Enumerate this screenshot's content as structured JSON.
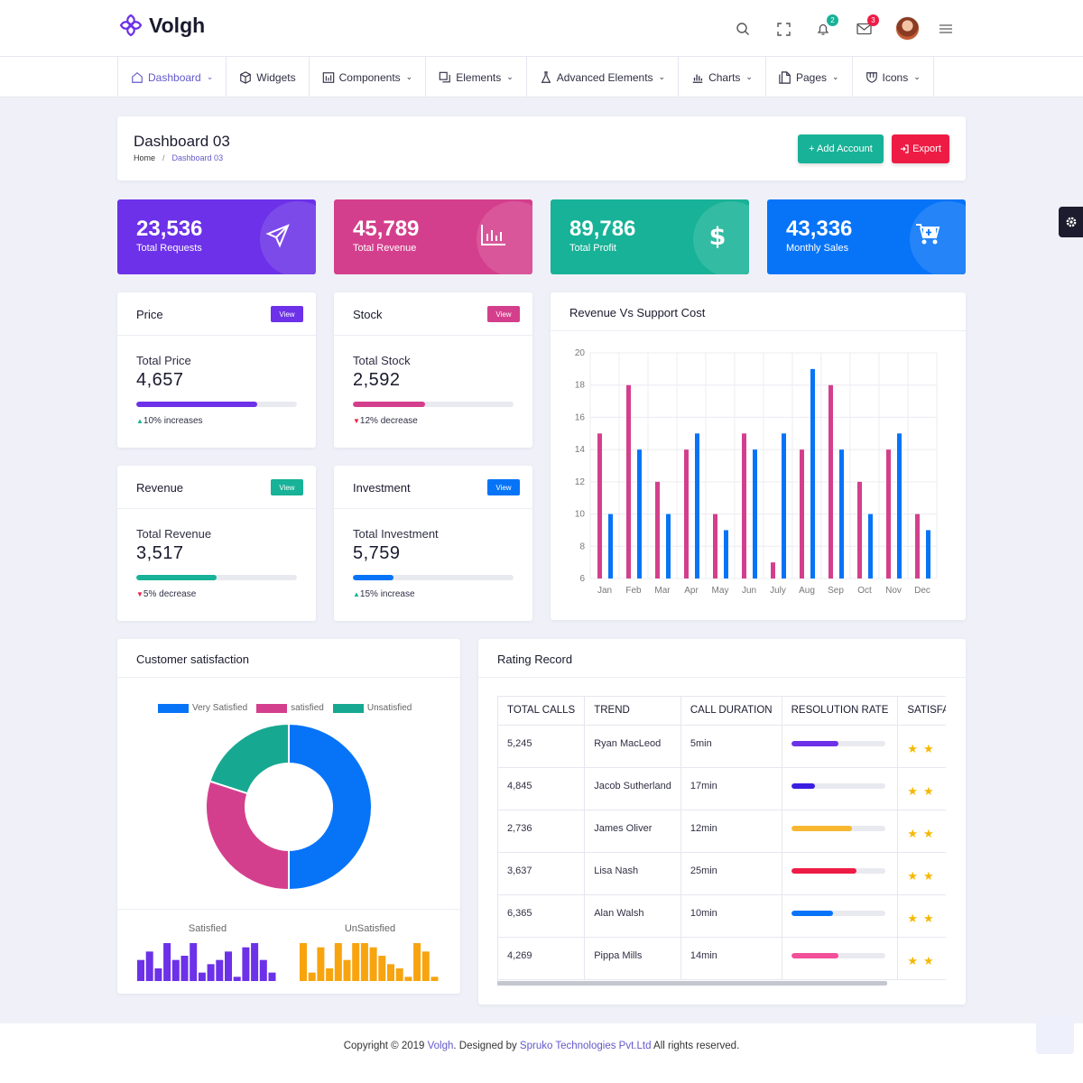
{
  "brand": {
    "name": "Volgh"
  },
  "header": {
    "notifications_count": "2",
    "messages_count": "3"
  },
  "nav": [
    {
      "label": "Dashboard",
      "icon": "home-icon",
      "active": true,
      "chevron": true
    },
    {
      "label": "Widgets",
      "icon": "box-icon",
      "chevron": false
    },
    {
      "label": "Components",
      "icon": "calendar-icon",
      "chevron": true
    },
    {
      "label": "Elements",
      "icon": "copy-icon",
      "chevron": true
    },
    {
      "label": "Advanced Elements",
      "icon": "flask-icon",
      "chevron": true
    },
    {
      "label": "Charts",
      "icon": "bar-chart-icon",
      "chevron": true
    },
    {
      "label": "Pages",
      "icon": "pages-icon",
      "chevron": true
    },
    {
      "label": "Icons",
      "icon": "shield-icon",
      "chevron": true
    }
  ],
  "page": {
    "title": "Dashboard 03",
    "breadcrumb": [
      "Home",
      "Dashboard 03"
    ],
    "add_button": "+ Add Account",
    "export_button": "Export"
  },
  "stats": [
    {
      "value": "23,536",
      "label": "Total Requests",
      "color": "#6c31e8",
      "icon": "paper-plane-icon"
    },
    {
      "value": "45,789",
      "label": "Total Revenue",
      "color": "#d43f8d",
      "icon": "bar-chart-icon"
    },
    {
      "value": "89,786",
      "label": "Total Profit",
      "color": "#17b297",
      "icon": "dollar-icon"
    },
    {
      "value": "43,336",
      "label": "Monthly Sales",
      "color": "#0774f8",
      "icon": "cart-icon"
    }
  ],
  "mini_cards": [
    {
      "title": "Price",
      "button": "View",
      "label": "Total Price",
      "value": "4,657",
      "progress": 0.75,
      "note": "10% increases",
      "trend": "up",
      "color": "#6c31e8"
    },
    {
      "title": "Stock",
      "button": "View",
      "label": "Total Stock",
      "value": "2,592",
      "progress": 0.45,
      "note": "12% decrease",
      "trend": "down",
      "color": "#d43f8d"
    },
    {
      "title": "Revenue",
      "button": "View",
      "label": "Total Revenue",
      "value": "3,517",
      "progress": 0.5,
      "note": "5% decrease",
      "trend": "down",
      "color": "#17b297"
    },
    {
      "title": "Investment",
      "button": "View",
      "label": "Total Investment",
      "value": "5,759",
      "progress": 0.25,
      "note": "15% increase",
      "trend": "up",
      "color": "#0774f8"
    }
  ],
  "revenue_chart": {
    "title": "Revenue Vs Support Cost"
  },
  "chart_data": [
    {
      "type": "bar",
      "title": "Revenue Vs Support Cost",
      "categories": [
        "Jan",
        "Feb",
        "Mar",
        "Apr",
        "May",
        "Jun",
        "July",
        "Aug",
        "Sep",
        "Oct",
        "Nov",
        "Dec"
      ],
      "series": [
        {
          "values": [
            15,
            18,
            12,
            14,
            10,
            15,
            7,
            14,
            18,
            12,
            14,
            10
          ],
          "color": "#d43f8d"
        },
        {
          "values": [
            10,
            14,
            10,
            15,
            9,
            14,
            15,
            19,
            14,
            10,
            15,
            9
          ],
          "color": "#0774f8"
        }
      ],
      "ylim": [
        6,
        20
      ],
      "yticks": [
        6,
        8,
        10,
        12,
        14,
        16,
        18,
        20
      ],
      "grid": true
    },
    {
      "type": "pie",
      "title": "Customer satisfaction",
      "labels": [
        "Very Satisfied",
        "satisfied",
        "Unsatisfied"
      ],
      "values": [
        50,
        30,
        20
      ],
      "colors": [
        "#0774f8",
        "#d43f8d",
        "#17a891"
      ],
      "legend": "top"
    },
    {
      "type": "bar",
      "title": "Satisfied",
      "values": [
        5,
        7,
        3,
        9,
        5,
        6,
        9,
        2,
        4,
        5,
        7,
        1,
        8,
        9,
        5,
        2
      ],
      "color": "#6c31e8"
    },
    {
      "type": "bar",
      "title": "UnSatisfied",
      "values": [
        9,
        2,
        8,
        3,
        9,
        5,
        9,
        9,
        8,
        6,
        4,
        3,
        1,
        9,
        7,
        1
      ],
      "color": "#f7a40f"
    }
  ],
  "satisfaction": {
    "title": "Customer satisfaction",
    "legend": [
      "Very Satisfied",
      "satisfied",
      "Unsatisfied"
    ],
    "satisfied_label": "Satisfied",
    "unsatisfied_label": "UnSatisfied"
  },
  "rating": {
    "title": "Rating Record",
    "columns": [
      "TOTAL CALLS",
      "TREND",
      "CALL DURATION",
      "RESOLUTION RATE",
      "SATISFACTION"
    ],
    "rows": [
      {
        "calls": "5,245",
        "trend": "Ryan MacLeod",
        "duration": "5min",
        "rate": 0.5,
        "color": "#6c31e8",
        "stars": 2
      },
      {
        "calls": "4,845",
        "trend": "Jacob Sutherland",
        "duration": "17min",
        "rate": 0.25,
        "color": "#3b1fe0",
        "stars": 2
      },
      {
        "calls": "2,736",
        "trend": "James Oliver",
        "duration": "12min",
        "rate": 0.65,
        "color": "#f7b731",
        "stars": 2
      },
      {
        "calls": "3,637",
        "trend": "Lisa Nash",
        "duration": "25min",
        "rate": 0.7,
        "color": "#ee1c45",
        "stars": 2
      },
      {
        "calls": "6,365",
        "trend": "Alan Walsh",
        "duration": "10min",
        "rate": 0.45,
        "color": "#0774f8",
        "stars": 2
      },
      {
        "calls": "4,269",
        "trend": "Pippa Mills",
        "duration": "14min",
        "rate": 0.5,
        "color": "#f34f9a",
        "stars": 2
      }
    ]
  },
  "footer": {
    "prefix": "Copyright © 2019",
    "brand": "Volgh",
    "middle": ". Designed by",
    "company": "Spruko Technologies Pvt.Ltd",
    "suffix": "All rights reserved."
  }
}
